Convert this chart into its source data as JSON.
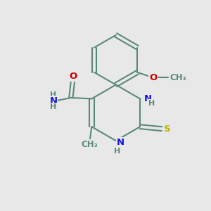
{
  "background_color": "#e8e8e8",
  "bond_color": "#5a8a7a",
  "bond_width": 1.5,
  "atom_colors": {
    "N": "#1515e0",
    "O": "#cc0000",
    "S": "#b8b800",
    "C": "#5a8a7a",
    "H": "#5a8a7a"
  },
  "font_size_atom": 9.5,
  "font_size_small": 8.0,
  "fig_bg": "#e8e8e8"
}
